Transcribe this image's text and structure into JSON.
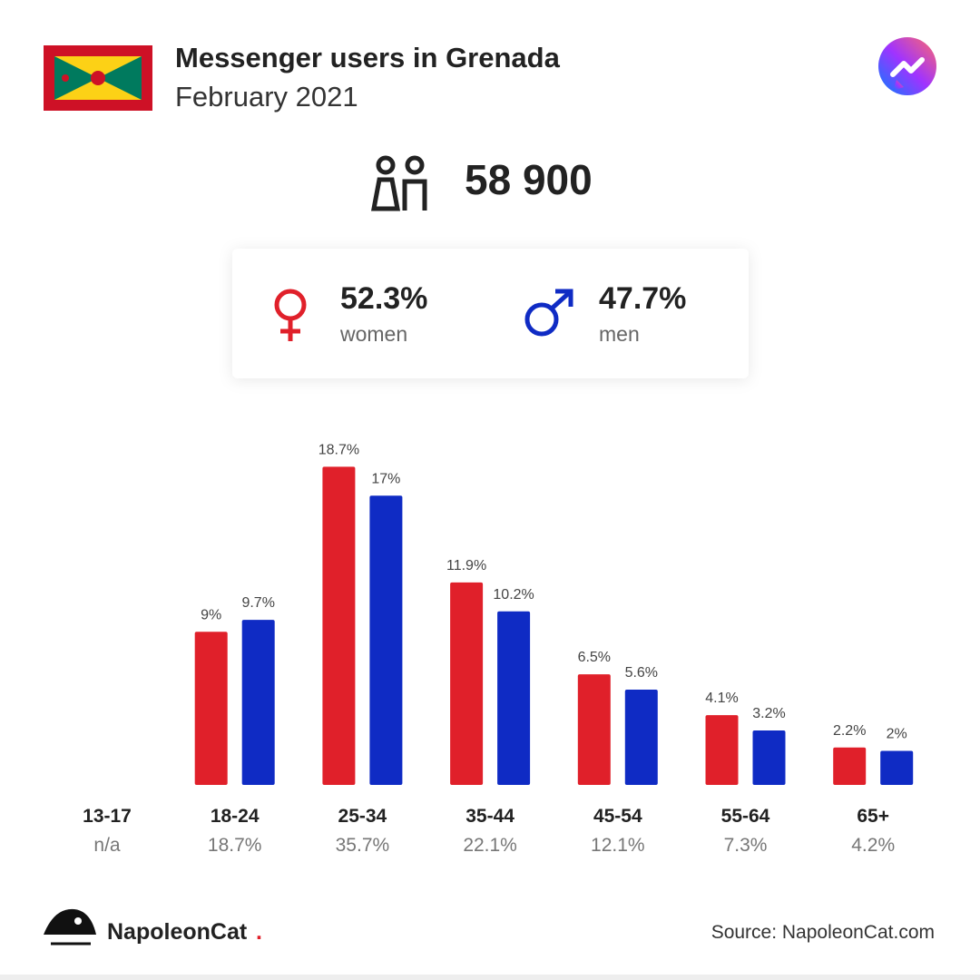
{
  "header": {
    "title": "Messenger users in Grenada",
    "subtitle": "February 2021"
  },
  "total": "58 900",
  "shares": [
    "52.3%",
    "47.7%"
  ],
  "chart_data": {
    "type": "bar",
    "categories": [
      "13-17",
      "18-24",
      "25-34",
      "35-44",
      "45-54",
      "55-64",
      "65+"
    ],
    "category_totals": [
      "n/a",
      "18.7%",
      "35.7%",
      "22.1%",
      "12.1%",
      "7.3%",
      "4.2%"
    ],
    "series": [
      {
        "name": "women",
        "color": "#e0202a",
        "values": [
          null,
          9,
          18.7,
          11.9,
          6.5,
          4.1,
          2.2
        ],
        "value_labels": [
          null,
          "9%",
          "18.7%",
          "11.9%",
          "6.5%",
          "4.1%",
          "2.2%"
        ]
      },
      {
        "name": "men",
        "color": "#0f2bc4",
        "values": [
          null,
          9.7,
          17,
          10.2,
          5.6,
          3.2,
          2
        ],
        "value_labels": [
          null,
          "9.7%",
          "17%",
          "10.2%",
          "5.6%",
          "3.2%",
          "2%"
        ]
      }
    ]
  },
  "footer": {
    "brand": "NapoleonCat",
    "brand_dot": ".",
    "source": "Source: NapoleonCat.com"
  }
}
